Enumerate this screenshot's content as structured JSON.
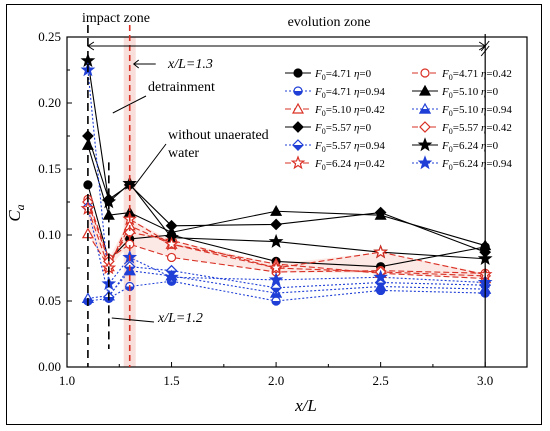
{
  "chart_data": {
    "type": "line",
    "xlabel": "x/L",
    "ylabel": "C_a",
    "xlim": [
      1.0,
      3.2
    ],
    "ylim": [
      0.0,
      0.25
    ],
    "x_ticks": [
      "1.0",
      "1.5",
      "2.0",
      "2.5",
      "3.0"
    ],
    "y_ticks": [
      "0.00",
      "0.05",
      "0.10",
      "0.15",
      "0.20",
      "0.25"
    ],
    "x": [
      1.1,
      1.2,
      1.3,
      1.5,
      2.0,
      2.5,
      3.0
    ],
    "annotations": {
      "impact_zone": "impact zone",
      "evolution_zone": "evolution zone",
      "x13": "x/L=1.3",
      "x12": "x/L=1.2",
      "detrainment": "detrainment",
      "unaerated_line1": "without unaerated",
      "unaerated_line2": "water"
    },
    "series": [
      {
        "F0": "4.71",
        "eta": "0",
        "color": "#000000",
        "marker": "circle",
        "fill": "solid",
        "dash": "solid",
        "values": [
          0.138,
          0.081,
          0.097,
          0.1,
          0.08,
          0.076,
          0.091
        ]
      },
      {
        "F0": "4.71",
        "eta": "0.42",
        "color": "#d93025",
        "marker": "circle",
        "fill": "open",
        "dash": "dash",
        "values": [
          0.127,
          0.082,
          0.093,
          0.083,
          0.072,
          0.073,
          0.071
        ]
      },
      {
        "F0": "4.71",
        "eta": "0.94",
        "color": "#1f3fd6",
        "marker": "circle",
        "fill": "half",
        "dash": "dot",
        "values": [
          0.05,
          0.052,
          0.061,
          0.065,
          0.05,
          0.058,
          0.056
        ]
      },
      {
        "F0": "5.10",
        "eta": "0",
        "color": "#000000",
        "marker": "triangle",
        "fill": "solid",
        "dash": "solid",
        "values": [
          0.168,
          0.115,
          0.117,
          0.102,
          0.118,
          0.115,
          0.092
        ]
      },
      {
        "F0": "5.10",
        "eta": "0.42",
        "color": "#d93025",
        "marker": "triangle",
        "fill": "open",
        "dash": "dash",
        "values": [
          0.101,
          0.076,
          0.107,
          0.093,
          0.078,
          0.071,
          0.067
        ]
      },
      {
        "F0": "5.10",
        "eta": "0.94",
        "color": "#1f3fd6",
        "marker": "triangle",
        "fill": "half",
        "dash": "dot",
        "values": [
          0.052,
          0.054,
          0.073,
          0.069,
          0.056,
          0.061,
          0.059
        ]
      },
      {
        "F0": "5.57",
        "eta": "0",
        "color": "#000000",
        "marker": "diamond",
        "fill": "solid",
        "dash": "solid",
        "values": [
          0.175,
          0.127,
          0.138,
          0.107,
          0.108,
          0.117,
          0.087
        ]
      },
      {
        "F0": "5.57",
        "eta": "0.42",
        "color": "#d93025",
        "marker": "diamond",
        "fill": "open",
        "dash": "dash",
        "values": [
          0.125,
          0.08,
          0.102,
          0.096,
          0.075,
          0.072,
          0.069
        ]
      },
      {
        "F0": "5.57",
        "eta": "0.94",
        "color": "#1f3fd6",
        "marker": "diamond",
        "fill": "half",
        "dash": "dot",
        "values": [
          0.121,
          0.053,
          0.076,
          0.073,
          0.06,
          0.064,
          0.062
        ]
      },
      {
        "F0": "6.24",
        "eta": "0",
        "color": "#000000",
        "marker": "star",
        "fill": "solid",
        "dash": "solid",
        "values": [
          0.232,
          0.125,
          0.139,
          0.098,
          0.095,
          0.087,
          0.082
        ]
      },
      {
        "F0": "6.24",
        "eta": "0.42",
        "color": "#d93025",
        "marker": "star",
        "fill": "open",
        "dash": "dash",
        "values": [
          0.12,
          0.075,
          0.112,
          0.093,
          0.075,
          0.087,
          0.07
        ]
      },
      {
        "F0": "6.24",
        "eta": "0.94",
        "color": "#1f3fd6",
        "marker": "star",
        "fill": "solid",
        "dash": "dot",
        "values": [
          0.225,
          0.063,
          0.083,
          0.068,
          0.066,
          0.068,
          0.064
        ]
      }
    ]
  }
}
